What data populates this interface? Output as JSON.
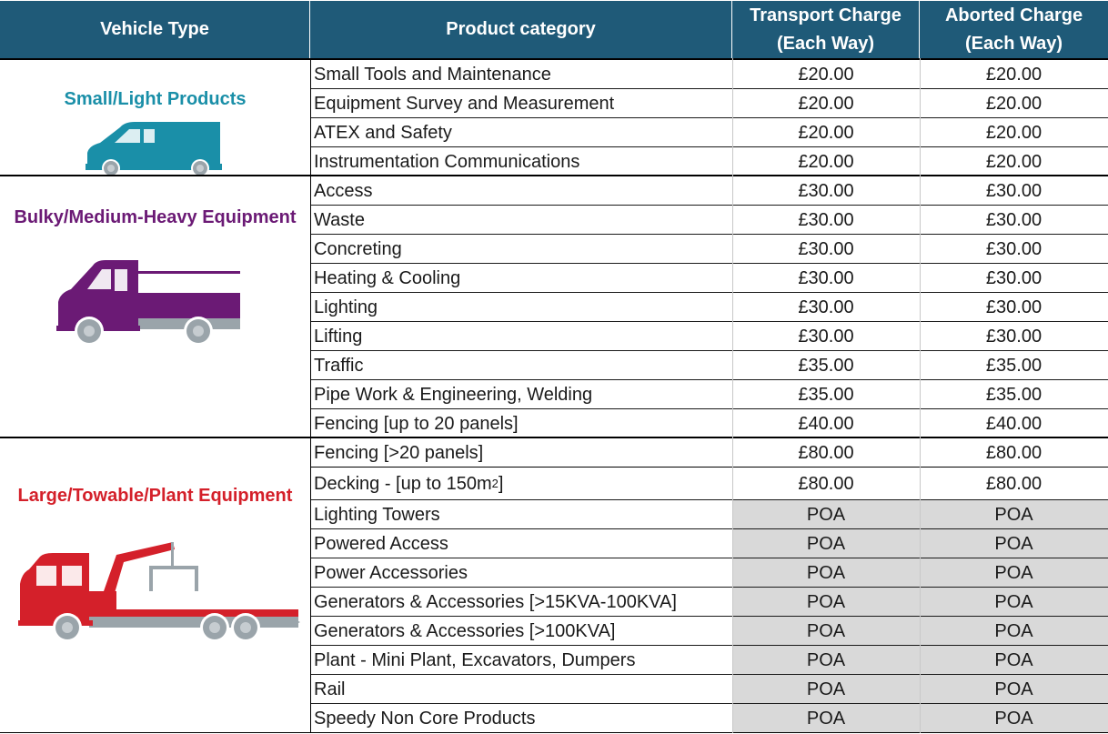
{
  "header": {
    "vehicle_type": "Vehicle Type",
    "product_category": "Product category",
    "transport_charge_l1": "Transport Charge",
    "transport_charge_l2": "(Each Way)",
    "aborted_charge_l1": "Aborted Charge",
    "aborted_charge_l2": "(Each Way)"
  },
  "colors": {
    "header_bg": "#1f5a78",
    "small_group": "#1a8fa8",
    "bulky_group": "#6b1a75",
    "large_group": "#d4202a",
    "poa_bg": "#d9d9d9"
  },
  "groups": [
    {
      "label": "Small/Light Products",
      "icon": "van-icon",
      "rows": [
        {
          "product": "Small Tools and Maintenance",
          "transport": "£20.00",
          "aborted": "£20.00"
        },
        {
          "product": "Equipment Survey and Measurement",
          "transport": "£20.00",
          "aborted": "£20.00"
        },
        {
          "product": "ATEX and Safety",
          "transport": "£20.00",
          "aborted": "£20.00"
        },
        {
          "product": "Instrumentation Communications",
          "transport": "£20.00",
          "aborted": "£20.00"
        }
      ]
    },
    {
      "label": "Bulky/Medium-Heavy Equipment",
      "icon": "flatbed-truck-icon",
      "rows": [
        {
          "product": "Access",
          "transport": "£30.00",
          "aborted": "£30.00"
        },
        {
          "product": "Waste",
          "transport": "£30.00",
          "aborted": "£30.00"
        },
        {
          "product": "Concreting",
          "transport": "£30.00",
          "aborted": "£30.00"
        },
        {
          "product": "Heating & Cooling",
          "transport": "£30.00",
          "aborted": "£30.00"
        },
        {
          "product": "Lighting",
          "transport": "£30.00",
          "aborted": "£30.00"
        },
        {
          "product": "Lifting",
          "transport": "£30.00",
          "aborted": "£30.00"
        },
        {
          "product": "Traffic",
          "transport": "£35.00",
          "aborted": "£35.00"
        },
        {
          "product": "Pipe Work & Engineering, Welding",
          "transport": "£35.00",
          "aborted": "£35.00"
        },
        {
          "product": "Fencing [up to 20 panels]",
          "transport": "£40.00",
          "aborted": "£40.00"
        }
      ]
    },
    {
      "label": "Large/Towable/Plant Equipment",
      "icon": "crane-truck-icon",
      "rows": [
        {
          "product": "Fencing [>20 panels]",
          "transport": "£80.00",
          "aborted": "£80.00"
        },
        {
          "product": "Decking - [up to 150m",
          "product_sup": "2",
          "product_suffix": "]",
          "transport": "£80.00",
          "aborted": "£80.00"
        },
        {
          "product": "Lighting Towers",
          "transport": "POA",
          "aborted": "POA"
        },
        {
          "product": "Powered Access",
          "transport": "POA",
          "aborted": "POA"
        },
        {
          "product": "Power Accessories",
          "transport": "POA",
          "aborted": "POA"
        },
        {
          "product": "Generators & Accessories [>15KVA-100KVA]",
          "transport": "POA",
          "aborted": "POA"
        },
        {
          "product": "Generators & Accessories [>100KVA]",
          "transport": "POA",
          "aborted": "POA"
        },
        {
          "product": "Plant - Mini Plant, Excavators, Dumpers",
          "transport": "POA",
          "aborted": "POA"
        },
        {
          "product": "Rail",
          "transport": "POA",
          "aborted": "POA"
        },
        {
          "product": "Speedy Non Core Products",
          "transport": "POA",
          "aborted": "POA"
        }
      ]
    }
  ]
}
